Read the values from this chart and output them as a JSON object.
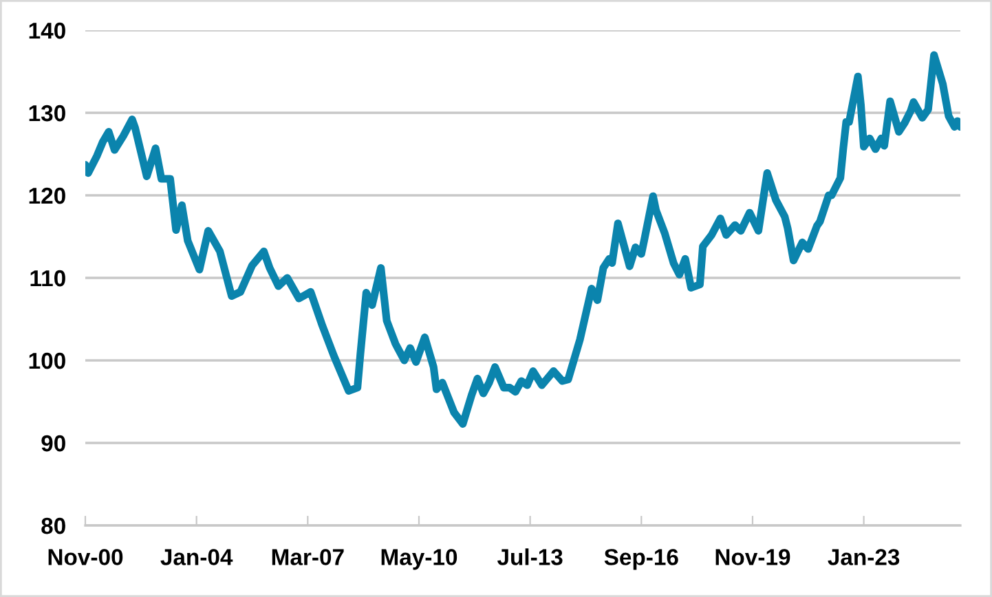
{
  "chart_data": {
    "type": "line",
    "color": "#0b84ad",
    "x": [
      "2000-11",
      "2000-12",
      "2001-03",
      "2001-05",
      "2001-07",
      "2001-09",
      "2001-12",
      "2002-03",
      "2002-04",
      "2002-08",
      "2002-11",
      "2003-01",
      "2003-04",
      "2003-06",
      "2003-08",
      "2003-10",
      "2004-02",
      "2004-05",
      "2004-09",
      "2005-01",
      "2005-04",
      "2005-08",
      "2005-12",
      "2006-02",
      "2006-05",
      "2006-08",
      "2006-12",
      "2007-04",
      "2007-08",
      "2007-12",
      "2008-05",
      "2008-08",
      "2008-09",
      "2008-11",
      "2009-01",
      "2009-04",
      "2009-06",
      "2009-09",
      "2009-12",
      "2010-02",
      "2010-04",
      "2010-07",
      "2010-10",
      "2010-11",
      "2011-01",
      "2011-05",
      "2011-08",
      "2011-11",
      "2012-01",
      "2012-03",
      "2012-05",
      "2012-07",
      "2012-10",
      "2012-12",
      "2013-02",
      "2013-04",
      "2013-06",
      "2013-08",
      "2013-11",
      "2014-03",
      "2014-06",
      "2014-08",
      "2014-12",
      "2015-04",
      "2015-06",
      "2015-08",
      "2015-10",
      "2015-11",
      "2016-01",
      "2016-05",
      "2016-07",
      "2016-09",
      "2016-10",
      "2017-01",
      "2017-02",
      "2017-05",
      "2017-08",
      "2017-10",
      "2017-12",
      "2018-02",
      "2018-05",
      "2018-06",
      "2018-09",
      "2018-12",
      "2019-02",
      "2019-05",
      "2019-07",
      "2019-10",
      "2020-01",
      "2020-04",
      "2020-07",
      "2020-10",
      "2020-11",
      "2021-01",
      "2021-04",
      "2021-06",
      "2021-09",
      "2021-10",
      "2022-01",
      "2022-02",
      "2022-05",
      "2022-06",
      "2022-07",
      "2022-08",
      "2022-11",
      "2022-12",
      "2023-01",
      "2023-03",
      "2023-05",
      "2023-07",
      "2023-08",
      "2023-10",
      "2024-01",
      "2024-03",
      "2024-05",
      "2024-06",
      "2024-09",
      "2024-11",
      "2025-01",
      "2025-04",
      "2025-06",
      "2025-08",
      "2025-09",
      "2025-10"
    ],
    "values": [
      123.7,
      122.7,
      124.8,
      126.5,
      127.7,
      125.5,
      127.2,
      129.2,
      128.2,
      122.3,
      125.7,
      122,
      122,
      115.8,
      118.8,
      114.5,
      111,
      115.7,
      113.2,
      107.8,
      108.3,
      111.5,
      113.2,
      111.2,
      109,
      110,
      107.5,
      108.3,
      104.2,
      100.5,
      96.3,
      96.7,
      100.8,
      108.2,
      106.7,
      111.2,
      104.8,
      102,
      100,
      101.5,
      99.8,
      102.8,
      99.2,
      96.5,
      97.3,
      93.7,
      92.3,
      95.8,
      97.8,
      96,
      97.3,
      99.2,
      96.7,
      96.7,
      96.2,
      97.5,
      97,
      98.7,
      97,
      98.7,
      97.5,
      97.7,
      102.5,
      108.7,
      107.3,
      111.2,
      112.3,
      111.8,
      116.6,
      111.4,
      113.7,
      112.9,
      114.6,
      119.9,
      118.2,
      115.4,
      111.8,
      110.4,
      112.3,
      108.8,
      109.2,
      113.8,
      115.2,
      117.2,
      115.2,
      116.4,
      115.7,
      117.9,
      115.7,
      122.7,
      119.4,
      117.4,
      116,
      112.1,
      114.3,
      113.5,
      116.3,
      116.8,
      120,
      120,
      122.1,
      125.7,
      128.9,
      128.9,
      134.4,
      131,
      125.9,
      126.9,
      125.6,
      126.9,
      126,
      131.4,
      127.7,
      128.8,
      130.2,
      131.3,
      129.4,
      130.4,
      137,
      133.5,
      129.6,
      128.3,
      129,
      128.3
    ],
    "xlim": [
      "2000-11",
      "2025-10"
    ],
    "xticks": [
      {
        "value": "2000-11",
        "label": "Nov-00"
      },
      {
        "value": "2004-01",
        "label": "Jan-04"
      },
      {
        "value": "2007-03",
        "label": "Mar-07"
      },
      {
        "value": "2010-05",
        "label": "May-10"
      },
      {
        "value": "2013-07",
        "label": "Jul-13"
      },
      {
        "value": "2016-09",
        "label": "Sep-16"
      },
      {
        "value": "2019-11",
        "label": "Nov-19"
      },
      {
        "value": "2023-01",
        "label": "Jan-23"
      }
    ],
    "ylim": [
      80,
      140
    ],
    "yticks": [
      80,
      90,
      100,
      110,
      120,
      130,
      140
    ],
    "grid": "y",
    "legend": false,
    "marker": "none",
    "line_style": "solid"
  }
}
